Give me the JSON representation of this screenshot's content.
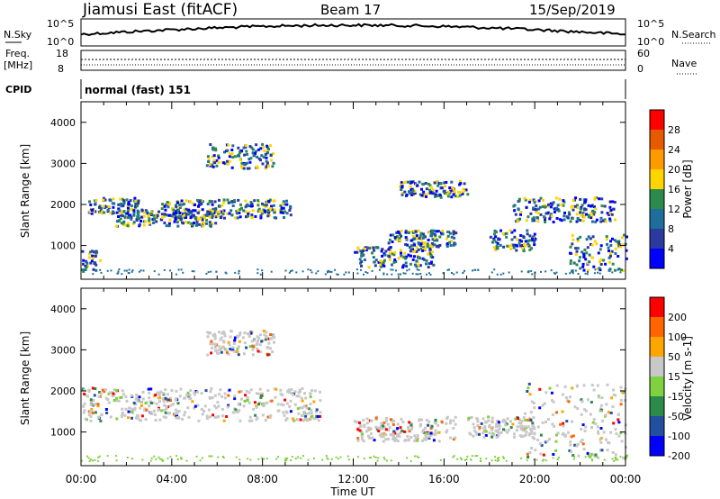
{
  "header": {
    "station": "Jiamusi East (fitACF)",
    "beam": "Beam 17",
    "date": "15/Sep/2019"
  },
  "top_panels": {
    "nsky": {
      "label": "N.Sky",
      "ticks": [
        "10^5",
        "10^0"
      ]
    },
    "nsearch": {
      "label": "N.Search",
      "ticks": [
        "10^5",
        "10^0"
      ]
    },
    "freq": {
      "label_line1": "Freq.",
      "label_line2": "[MHz]",
      "ticks": [
        "18",
        "8"
      ]
    },
    "nave": {
      "label": "Nave",
      "ticks": [
        "60",
        "0"
      ]
    },
    "cpid": {
      "label": "CPID",
      "value": "normal (fast) 151"
    }
  },
  "chart_data": [
    {
      "type": "heatmap",
      "name": "power",
      "ylabel": "Slant Range [km]",
      "ylim": [
        180,
        4500
      ],
      "yticks": [
        "4000",
        "3000",
        "2000",
        "1000"
      ],
      "colorbar": {
        "label": "Power [dB]",
        "ticks": [
          "28",
          "24",
          "20",
          "16",
          "12",
          "8",
          "4"
        ],
        "colors": [
          "#ff0000",
          "#e65a00",
          "#ff9900",
          "#ffd500",
          "#2d8a4f",
          "#1e6e9c",
          "#2a3a9e",
          "#0000ff"
        ]
      },
      "echo_bands": [
        {
          "t0": 0.3,
          "t1": 2.5,
          "r0": 1800,
          "r1": 2200
        },
        {
          "t0": 1.5,
          "t1": 6.0,
          "r0": 1500,
          "r1": 1900
        },
        {
          "t0": 3.5,
          "t1": 9.2,
          "r0": 1700,
          "r1": 2150
        },
        {
          "t0": 5.5,
          "t1": 8.5,
          "r0": 2900,
          "r1": 3500
        },
        {
          "t0": 0.0,
          "t1": 0.8,
          "r0": 400,
          "r1": 900
        },
        {
          "t0": 12.0,
          "t1": 15.5,
          "r0": 500,
          "r1": 1000
        },
        {
          "t0": 13.5,
          "t1": 16.5,
          "r0": 1000,
          "r1": 1400
        },
        {
          "t0": 14.0,
          "t1": 17.0,
          "r0": 2200,
          "r1": 2600
        },
        {
          "t0": 18.0,
          "t1": 20.0,
          "r0": 900,
          "r1": 1400
        },
        {
          "t0": 19.0,
          "t1": 23.5,
          "r0": 1600,
          "r1": 2200
        },
        {
          "t0": 21.5,
          "t1": 24.0,
          "r0": 400,
          "r1": 1300
        }
      ]
    },
    {
      "type": "heatmap",
      "name": "velocity",
      "ylabel": "Slant Range [km]",
      "ylim": [
        180,
        4500
      ],
      "yticks": [
        "4000",
        "3000",
        "2000",
        "1000"
      ],
      "xlabel": "Time UT",
      "xticks": [
        "00:00",
        "04:00",
        "08:00",
        "12:00",
        "16:00",
        "20:00",
        "00:00"
      ],
      "colorbar": {
        "label": "Velocity [m s-1]",
        "ticks": [
          "200",
          "100",
          "50",
          "15",
          "-15",
          "-50",
          "-100",
          "-200"
        ],
        "colors": [
          "#ff0000",
          "#ff6600",
          "#ffa500",
          "#c8c8c8",
          "#7fd13f",
          "#2c8a4b",
          "#234fa0",
          "#0000ff"
        ]
      },
      "echo_bands": [
        {
          "t0": 0.0,
          "t1": 10.5,
          "r0": 1300,
          "r1": 2100
        },
        {
          "t0": 5.5,
          "t1": 8.5,
          "r0": 2900,
          "r1": 3500
        },
        {
          "t0": 12.0,
          "t1": 16.5,
          "r0": 800,
          "r1": 1400
        },
        {
          "t0": 17.0,
          "t1": 20.0,
          "r0": 900,
          "r1": 1400
        },
        {
          "t0": 19.5,
          "t1": 24.0,
          "r0": 400,
          "r1": 2200
        }
      ]
    }
  ]
}
